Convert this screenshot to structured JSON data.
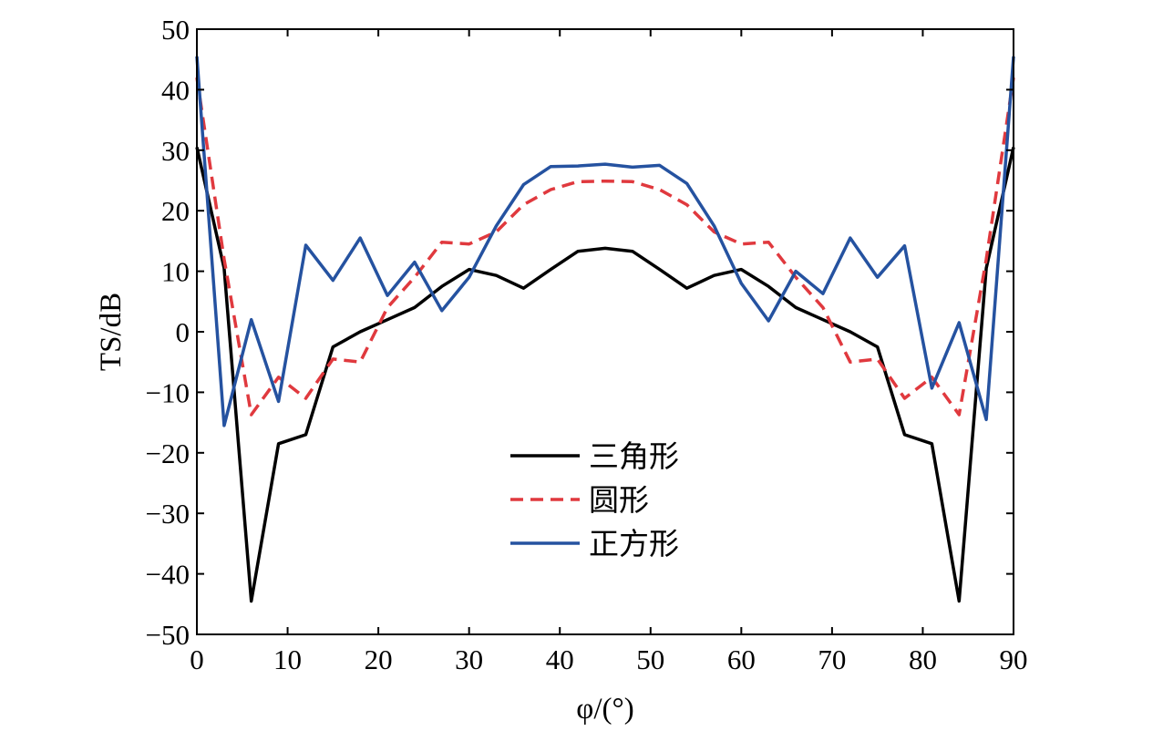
{
  "chart_data": {
    "type": "line",
    "xlabel": "φ/(°)",
    "ylabel": "TS/dB",
    "xlim": [
      0,
      90
    ],
    "ylim": [
      -50,
      50
    ],
    "xticks": [
      0,
      10,
      20,
      30,
      40,
      50,
      60,
      70,
      80,
      90
    ],
    "yticks": [
      50,
      40,
      30,
      20,
      10,
      0,
      -10,
      -20,
      -30,
      -40,
      -50
    ],
    "legend_position": "center",
    "grid": false,
    "x": [
      0,
      3,
      6,
      9,
      12,
      15,
      18,
      21,
      24,
      27,
      30,
      33,
      36,
      39,
      42,
      45,
      48,
      51,
      54,
      57,
      60,
      63,
      66,
      69,
      72,
      75,
      78,
      81,
      84,
      87,
      90
    ],
    "series": [
      {
        "name": "三角形",
        "color": "#000000",
        "dash": "solid",
        "values": [
          30.5,
          10.5,
          -44.5,
          -18.5,
          -17,
          -2.5,
          0,
          2,
          4,
          7.5,
          10.3,
          9.3,
          7.2,
          10.3,
          13.3,
          13.8,
          13.3,
          10.3,
          7.2,
          9.3,
          10.3,
          7.5,
          4,
          2,
          0,
          -2.5,
          -17,
          -18.5,
          -44.5,
          10.5,
          30.5
        ]
      },
      {
        "name": "圆形",
        "color": "#e0393e",
        "dash": "dashed",
        "values": [
          42,
          12,
          -13.7,
          -7.5,
          -11,
          -4.5,
          -5,
          4,
          9,
          14.8,
          14.5,
          16.5,
          21,
          23.5,
          24.8,
          24.9,
          24.8,
          23.5,
          21,
          16.5,
          14.5,
          14.8,
          9,
          4,
          -5,
          -4.5,
          -11,
          -7.5,
          -13.7,
          12,
          42
        ]
      },
      {
        "name": "正方形",
        "color": "#2552a0",
        "dash": "solid",
        "values": [
          45.5,
          -15.5,
          2,
          -11.5,
          14.3,
          8.5,
          15.5,
          6,
          11.5,
          3.5,
          9,
          17.5,
          24.3,
          27.3,
          27.4,
          27.7,
          27.2,
          27.5,
          24.5,
          17.5,
          8,
          1.8,
          10,
          6.3,
          15.5,
          9,
          14.2,
          -9.3,
          1.5,
          -14.5,
          45.5
        ]
      }
    ]
  }
}
